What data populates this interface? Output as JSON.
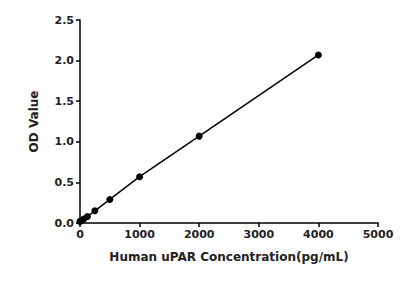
{
  "chart_data": {
    "type": "line",
    "x_label": "Human uPAR Concentration(pg/mL)",
    "y_label": "OD Value",
    "x": [
      0,
      62.5,
      125,
      250,
      500,
      1000,
      2000,
      4000
    ],
    "values": [
      0.02,
      0.05,
      0.08,
      0.15,
      0.29,
      0.57,
      1.07,
      2.07
    ],
    "color": "#000000",
    "marker": "circle",
    "line_style": "solid",
    "xlim": [
      0,
      5000
    ],
    "xticks": [
      0,
      1000,
      2000,
      3000,
      4000,
      5000
    ],
    "ylim": [
      0,
      2.5
    ],
    "yticks": [
      {
        "value": 0,
        "label": "0.0"
      },
      0.5,
      {
        "value": 1,
        "label": "1.0"
      },
      1.5,
      {
        "value": 2,
        "label": "2.0"
      },
      2.5
    ],
    "grid": false
  }
}
